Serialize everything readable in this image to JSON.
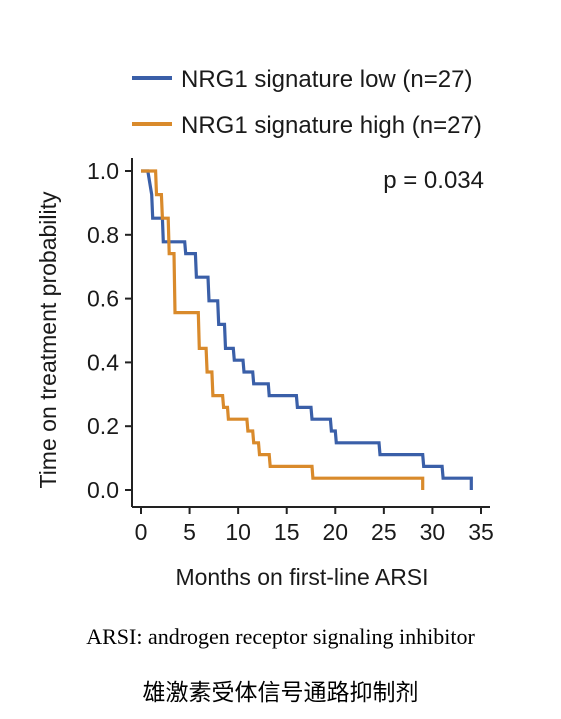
{
  "chart_data": {
    "type": "line",
    "subtype": "kaplan-meier step",
    "xlabel": "Months on first-line ARSI",
    "ylabel": "Time on treatment probability",
    "xlim": [
      0,
      35
    ],
    "ylim": [
      0,
      1.0
    ],
    "xticks": [
      0,
      5,
      10,
      15,
      20,
      25,
      30,
      35
    ],
    "yticks": [
      0.0,
      0.2,
      0.4,
      0.6,
      0.8,
      1.0
    ],
    "ytick_labels": [
      "0.0",
      "0.2",
      "0.4",
      "0.6",
      "0.8",
      "1.0"
    ],
    "grid": false,
    "legend_position": "top, above plot",
    "annotation": "p = 0.034",
    "series": [
      {
        "name": "NRG1 signature low (n=27)",
        "color": "#3a5fa8",
        "x": [
          0,
          0.7,
          1.1,
          1.2,
          2.2,
          2.3,
          4.5,
          4.6,
          5.6,
          5.7,
          6.9,
          7.0,
          7.9,
          8.0,
          8.6,
          8.7,
          9.5,
          9.6,
          10.5,
          10.6,
          11.5,
          11.6,
          13.1,
          13.2,
          16.0,
          16.1,
          17.5,
          17.6,
          19.5,
          19.6,
          20.0,
          20.1,
          24.5,
          24.6,
          29.0,
          29.1,
          31.0,
          31.1,
          33.0,
          33.1,
          34.0,
          34.0
        ],
        "y": [
          1.0,
          1.0,
          0.926,
          0.852,
          0.852,
          0.778,
          0.778,
          0.741,
          0.741,
          0.667,
          0.667,
          0.593,
          0.593,
          0.519,
          0.519,
          0.444,
          0.444,
          0.407,
          0.407,
          0.37,
          0.37,
          0.333,
          0.333,
          0.296,
          0.296,
          0.259,
          0.259,
          0.222,
          0.222,
          0.185,
          0.185,
          0.148,
          0.148,
          0.111,
          0.111,
          0.074,
          0.074,
          0.037,
          0.037,
          0.037,
          0.037,
          0.0
        ]
      },
      {
        "name": "NRG1 signature high (n=27)",
        "color": "#d98a2b",
        "x": [
          0,
          1.5,
          1.6,
          2.1,
          2.2,
          2.8,
          2.9,
          3.4,
          3.5,
          5.9,
          6.0,
          6.7,
          6.8,
          7.3,
          7.4,
          8.4,
          8.5,
          8.9,
          9.0,
          10.9,
          11.0,
          11.5,
          11.6,
          12.1,
          12.2,
          13.2,
          13.3,
          17.6,
          17.7,
          29.0,
          29.0
        ],
        "y": [
          1.0,
          1.0,
          0.926,
          0.926,
          0.852,
          0.852,
          0.741,
          0.741,
          0.556,
          0.556,
          0.444,
          0.444,
          0.37,
          0.37,
          0.296,
          0.296,
          0.259,
          0.259,
          0.222,
          0.222,
          0.185,
          0.185,
          0.148,
          0.148,
          0.111,
          0.111,
          0.074,
          0.074,
          0.037,
          0.037,
          0.0
        ]
      }
    ]
  },
  "caption": {
    "english": "ARSI: androgen receptor signaling inhibitor",
    "chinese": "雄激素受体信号通路抑制剂"
  }
}
